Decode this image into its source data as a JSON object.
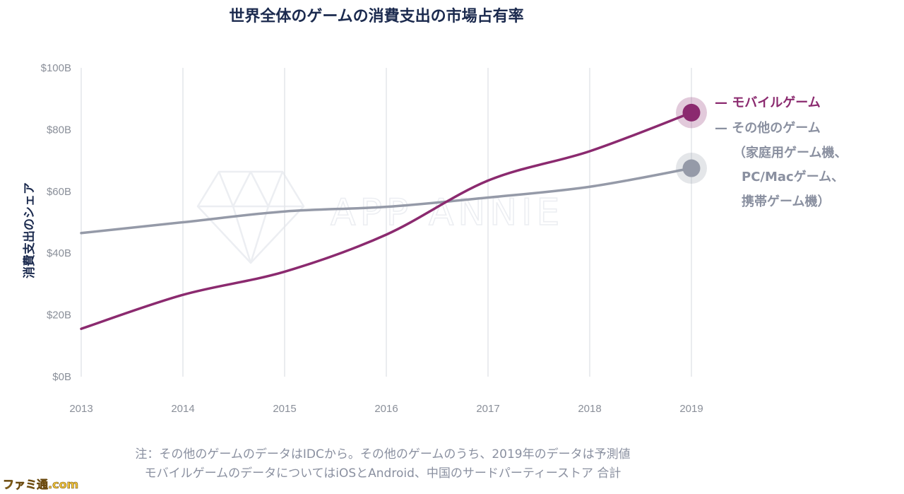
{
  "chart_data": {
    "type": "line",
    "title": "世界全体のゲームの消費支出の市場占有率",
    "xlabel": "",
    "ylabel": "消費支出のシェア",
    "categories": [
      "2013",
      "2014",
      "2015",
      "2016",
      "2017",
      "2018",
      "2019"
    ],
    "y_ticks": [
      "$0B",
      "$20B",
      "$40B",
      "$60B",
      "$80B",
      "$100B"
    ],
    "ylim": [
      0,
      100
    ],
    "grid": "vertical",
    "legend_position": "right",
    "series": [
      {
        "name": "モバイルゲーム",
        "color": "#8b2a6f",
        "values": [
          15.5,
          26.5,
          34,
          46,
          63.5,
          73,
          85.5
        ]
      },
      {
        "name": "その他のゲーム",
        "name_lines": [
          "（家庭用ゲーム機、",
          "PC/Macゲーム、",
          "携帯ゲーム機）"
        ],
        "color": "#959aa8",
        "values": [
          46.5,
          50,
          53.5,
          55,
          58,
          61.5,
          67.5
        ]
      }
    ],
    "notes": [
      "注：その他のゲームのデータはIDCから。その他のゲームのうち、2019年のデータは予測値",
      "モバイルゲームのデータについてはiOSとAndroid、中国のサードパーティーストア 合計"
    ]
  },
  "watermark": "APP ANNIE",
  "brand": "ファミ通.com"
}
